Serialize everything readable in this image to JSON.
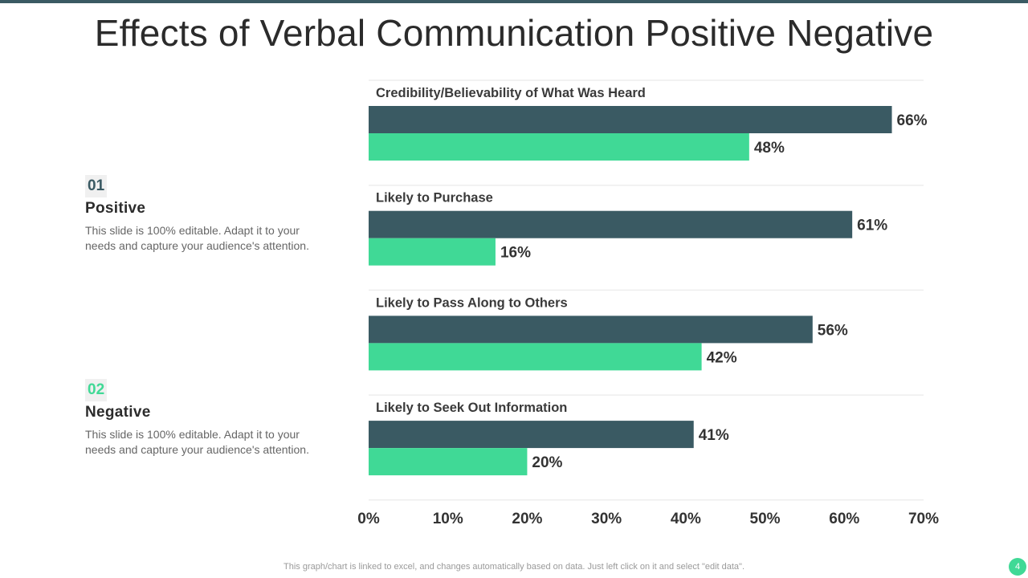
{
  "title": "Effects of Verbal Communication Positive Negative",
  "legend": [
    {
      "number": "01",
      "label": "Positive",
      "description": "This slide is 100% editable.  Adapt it to your needs and capture your audience's attention."
    },
    {
      "number": "02",
      "label": "Negative",
      "description": "This slide is 100% editable.  Adapt it to your needs and capture your audience's attention."
    }
  ],
  "colors": {
    "positive": "#3a5a63",
    "negative": "#40d996",
    "gridline": "#eeeeee"
  },
  "chart_data": {
    "type": "bar",
    "orientation": "horizontal",
    "categories": [
      "Credibility/Believability of What Was Heard",
      "Likely to Purchase",
      "Likely to Pass Along to Others",
      "Likely to Seek Out Information"
    ],
    "series": [
      {
        "name": "Positive",
        "values": [
          66,
          61,
          56,
          41
        ],
        "labels": [
          "66%",
          "61%",
          "56%",
          "41%"
        ]
      },
      {
        "name": "Negative",
        "values": [
          48,
          16,
          42,
          20
        ],
        "labels": [
          "48%",
          "16%",
          "42%",
          "20%"
        ]
      }
    ],
    "xlim": [
      0,
      70
    ],
    "ticks": [
      0,
      10,
      20,
      30,
      40,
      50,
      60,
      70
    ],
    "tick_labels": [
      "0%",
      "10%",
      "20%",
      "30%",
      "40%",
      "50%",
      "60%",
      "70%"
    ],
    "grid": true
  },
  "footer": "This graph/chart is linked to excel,  and changes automatically based on data. Just left click on it and select \"edit data\".",
  "page_number": "4"
}
